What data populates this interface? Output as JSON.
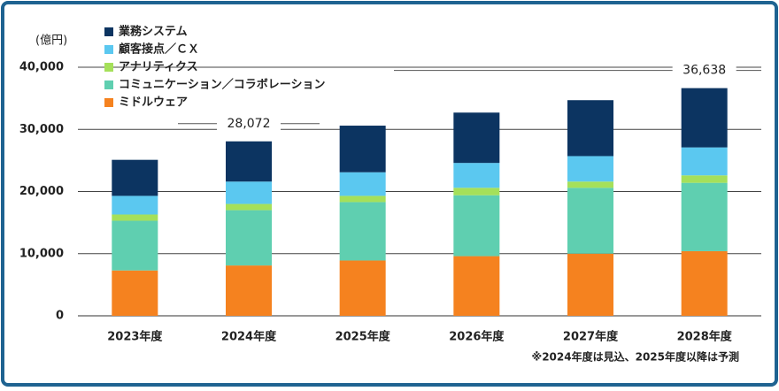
{
  "chart_data": {
    "type": "stacked_bar",
    "y_unit_label": "(億円)",
    "categories": [
      "2023年度",
      "2024年度",
      "2025年度",
      "2026年度",
      "2027年度",
      "2028年度"
    ],
    "series": [
      {
        "name": "ミドルウェア",
        "color": "#f5821f",
        "values": [
          7300,
          8100,
          8900,
          9600,
          10000,
          10400
        ]
      },
      {
        "name": "コミュニケーション／コラボレーション",
        "color": "#5fcfb0",
        "values": [
          8000,
          8900,
          9400,
          9800,
          10600,
          11000
        ]
      },
      {
        "name": "アナリティクス",
        "color": "#a5e05a",
        "values": [
          1000,
          1000,
          1000,
          1200,
          1000,
          1200
        ]
      },
      {
        "name": "顧客接点／ＣＸ",
        "color": "#5bc8f0",
        "values": [
          3000,
          3600,
          3800,
          4000,
          4100,
          4500
        ]
      },
      {
        "name": "業務システム",
        "color": "#0c3461",
        "values": [
          5800,
          6472,
          7500,
          8100,
          9000,
          9538
        ]
      }
    ],
    "totals": [
      null,
      28072,
      null,
      null,
      null,
      36638
    ],
    "total_labels": [
      null,
      "28,072",
      null,
      null,
      null,
      "36,638"
    ],
    "ylim": [
      0,
      40000
    ],
    "yticks": [
      0,
      {
        "value": 10000,
        "label": "10,000"
      },
      {
        "value": 20000,
        "label": "20,000"
      },
      {
        "value": 30000,
        "label": "30,000"
      },
      {
        "value": 40000,
        "label": "40,000"
      }
    ],
    "grid": true,
    "note": "※2024年度は見込、2025年度以降は予測"
  }
}
